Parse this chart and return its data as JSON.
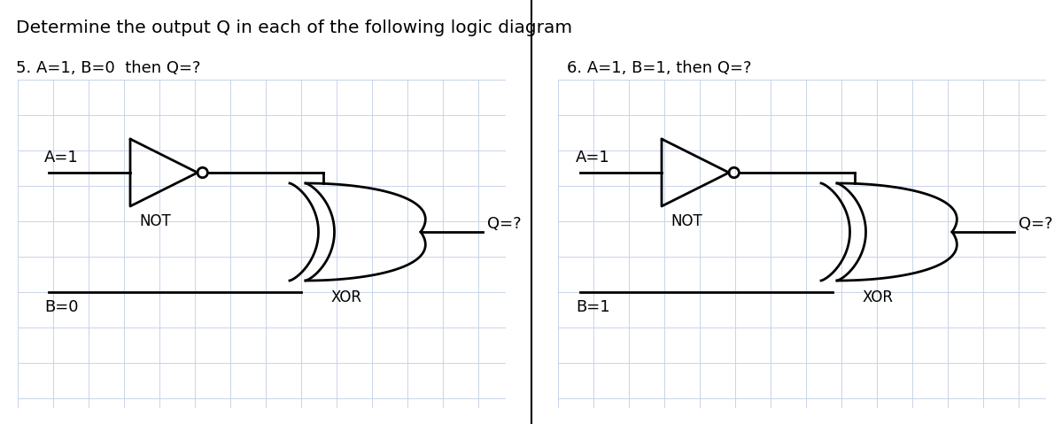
{
  "title": "Determine the output Q in each of the following logic diagram",
  "title_fontsize": 14.5,
  "problem5_label": "5. A=1, B=0  then Q=?",
  "problem6_label": "6. A=1, B=1, then Q=?",
  "label_fontsize": 13,
  "A_label_1": "A=1",
  "B_label_1": "B=0",
  "A_label_2": "A=1",
  "B_label_2": "B=1",
  "NOT_label": "NOT",
  "XOR_label": "XOR",
  "Q_label": "Q=?",
  "bg_color": "#ffffff",
  "grid_color": "#c8d4e8",
  "line_color": "#000000",
  "text_color": "#000000"
}
